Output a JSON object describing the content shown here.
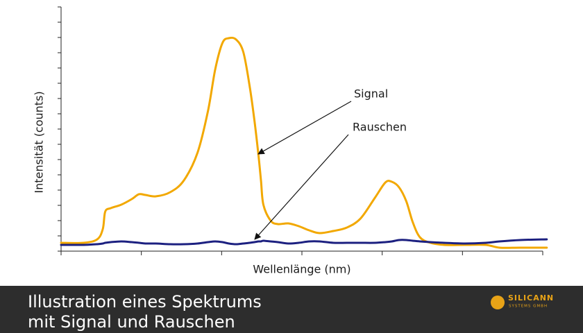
{
  "chart_data": {
    "type": "line",
    "x_label": "Wellenlänge (nm)",
    "y_label": "Intensität (counts)",
    "x": [
      0,
      0.28,
      0.45,
      0.52,
      0.55,
      0.62,
      0.75,
      0.88,
      0.97,
      1.05,
      1.18,
      1.36,
      1.53,
      1.7,
      1.83,
      1.92,
      2.01,
      2.09,
      2.18,
      2.27,
      2.35,
      2.41,
      2.46,
      2.49,
      2.52,
      2.61,
      2.7,
      2.83,
      2.96,
      3.09,
      3.22,
      3.39,
      3.56,
      3.73,
      3.91,
      4.04,
      4.12,
      4.21,
      4.3,
      4.38,
      4.47,
      4.6,
      4.77,
      5.03,
      5.29,
      5.46,
      5.72,
      6.05
    ],
    "series": [
      {
        "name": "Signal",
        "color": "#f2a800",
        "values": [
          3.41,
          3.41,
          4.83,
          9.09,
          16.19,
          17.61,
          19.03,
          21.31,
          23.3,
          23.01,
          22.44,
          24.15,
          28.98,
          40.34,
          57.39,
          74.43,
          85.23,
          87.22,
          86.65,
          81.53,
          67.33,
          53.13,
          38.92,
          28.98,
          19.03,
          12.5,
          11.08,
          11.36,
          10.23,
          8.52,
          7.39,
          8.24,
          9.66,
          13.35,
          21.88,
          28.13,
          28.41,
          26.14,
          20.45,
          11.93,
          5.68,
          3.41,
          2.56,
          2.56,
          2.56,
          1.42,
          1.42,
          1.42
        ]
      },
      {
        "name": "Rauschen",
        "color": "#1c2080",
        "values": [
          2.56,
          2.56,
          2.84,
          3.13,
          3.41,
          3.69,
          3.98,
          3.69,
          3.41,
          3.13,
          3.13,
          2.84,
          2.84,
          3.13,
          3.69,
          3.98,
          3.69,
          3.13,
          2.84,
          3.13,
          3.41,
          3.69,
          3.98,
          3.98,
          4.26,
          3.98,
          3.69,
          3.13,
          3.41,
          3.98,
          3.98,
          3.41,
          3.41,
          3.41,
          3.41,
          3.69,
          3.98,
          4.55,
          4.55,
          4.26,
          3.98,
          3.69,
          3.41,
          3.13,
          3.41,
          3.98,
          4.55,
          4.83
        ]
      }
    ],
    "xlim": [
      0,
      6
    ],
    "xticks": [
      0,
      1,
      2,
      3,
      4,
      5,
      6
    ],
    "ylim": [
      0,
      100
    ],
    "yticks": [
      0,
      6.25,
      12.5,
      18.75,
      25,
      31.25,
      37.5,
      43.75,
      50,
      56.25,
      62.5,
      68.75,
      75,
      81.25,
      87.5,
      93.75,
      100
    ],
    "grid": false
  },
  "footer": {
    "title": [
      "Illustration eines Spektrums",
      "mit Signal und Rauschen"
    ],
    "logo": [
      "SILICANN",
      "SYSTEMS GMBH"
    ]
  }
}
